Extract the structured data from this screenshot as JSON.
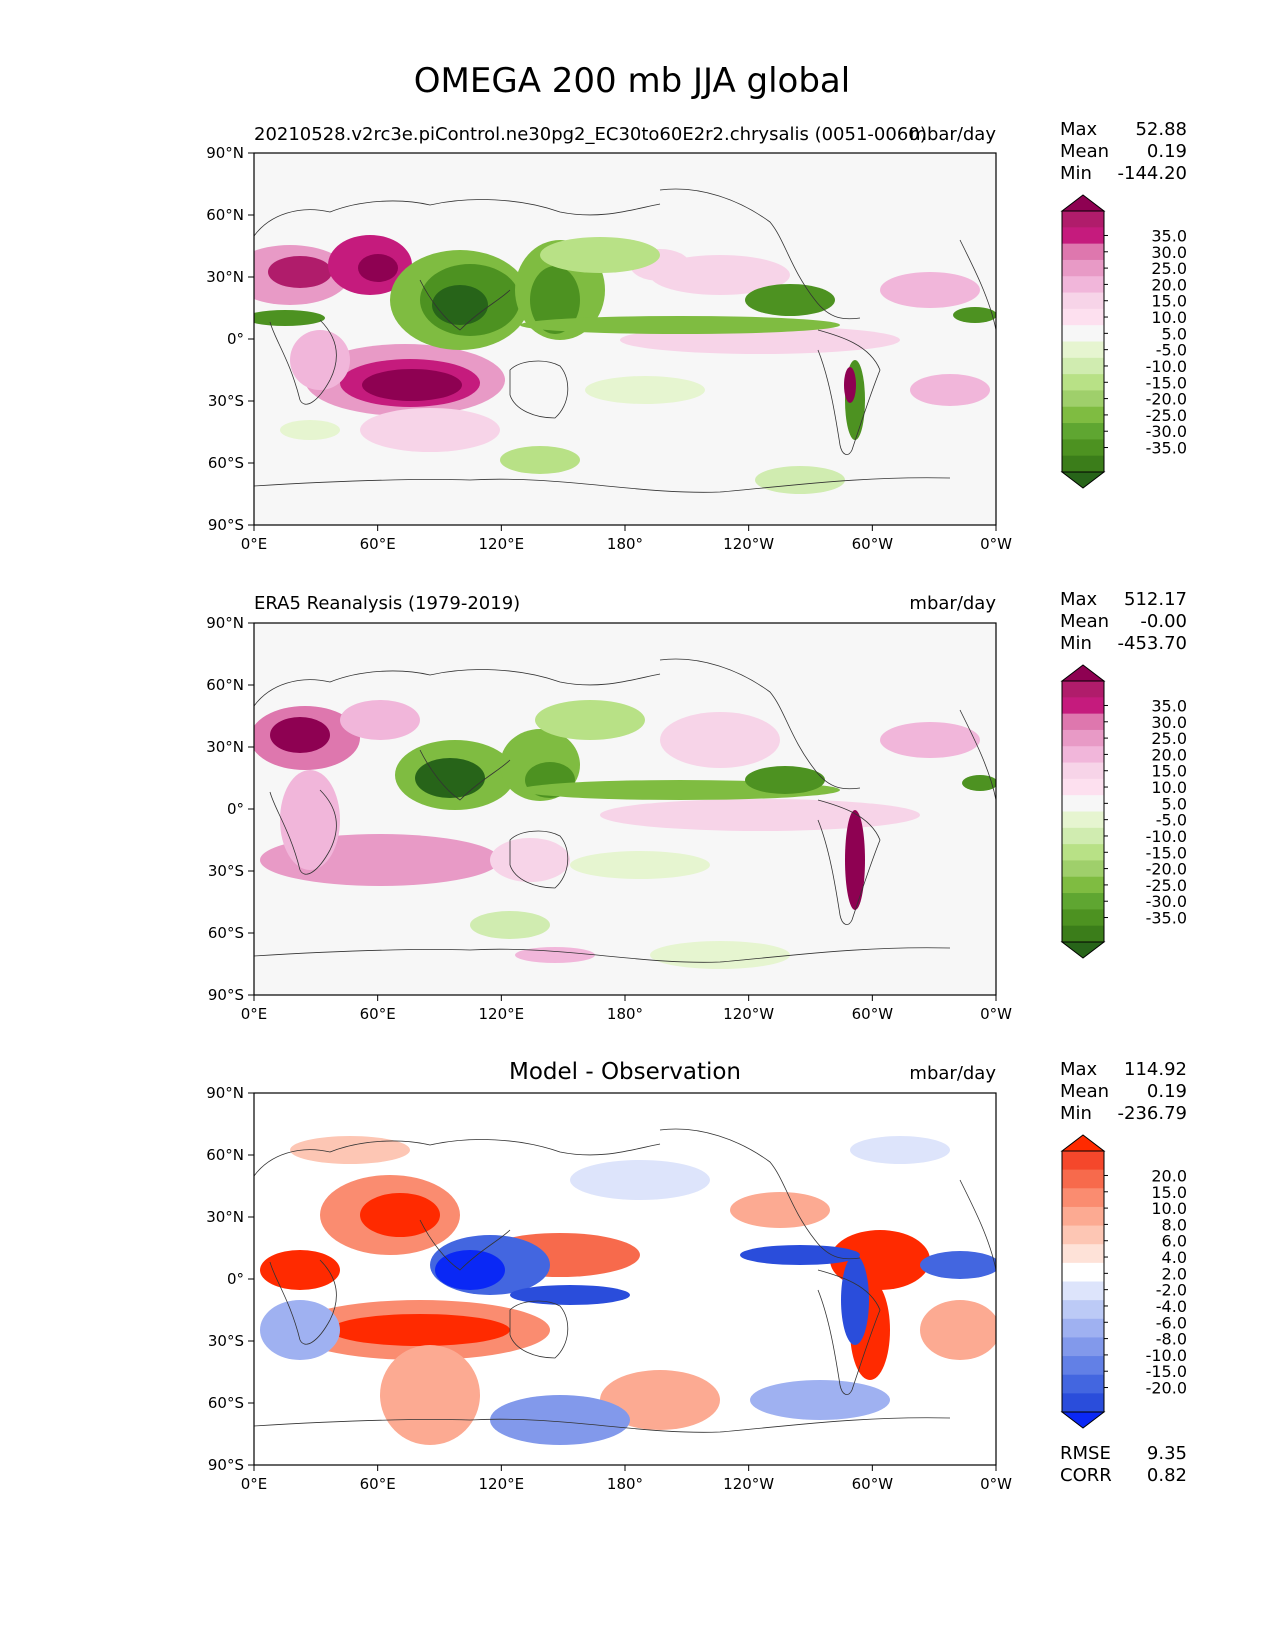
{
  "figure_title": "OMEGA 200 mb JJA global",
  "x_ticks": [
    "0°E",
    "60°E",
    "120°E",
    "180°",
    "120°W",
    "60°W",
    "0°W"
  ],
  "y_ticks": [
    "90°N",
    "60°N",
    "30°N",
    "0°",
    "30°S",
    "60°S",
    "90°S"
  ],
  "panels": [
    {
      "title_left": "20210528.v2rc3e.piControl.ne30pg2_EC30to60E2r2.chrysalis (0051-0060)",
      "title_center": "",
      "units": "mbar/day",
      "stats": {
        "max_label": "Max",
        "max": "52.88",
        "mean_label": "Mean",
        "mean": "0.19",
        "min_label": "Min",
        "min": "-144.20"
      },
      "colorbar": {
        "ticks": [
          "35.0",
          "30.0",
          "25.0",
          "20.0",
          "15.0",
          "10.0",
          "5.0",
          "-5.0",
          "-10.0",
          "-15.0",
          "-20.0",
          "-25.0",
          "-30.0",
          "-35.0"
        ],
        "colors": [
          "#8e0152",
          "#b01c6b",
          "#c51b7d",
          "#de77ae",
          "#e89ac6",
          "#f1b6da",
          "#f7d4e8",
          "#fde0ef",
          "#f7f7f7",
          "#e6f5d0",
          "#d0ecb0",
          "#b8e186",
          "#9fcf6b",
          "#7fbc41",
          "#5fa631",
          "#4d9221",
          "#3b7d1a",
          "#276419"
        ]
      }
    },
    {
      "title_left": "ERA5 Reanalysis (1979-2019)",
      "title_center": "",
      "units": "mbar/day",
      "stats": {
        "max_label": "Max",
        "max": "512.17",
        "mean_label": "Mean",
        "mean": "-0.00",
        "min_label": "Min",
        "min": "-453.70"
      },
      "colorbar": {
        "ticks": [
          "35.0",
          "30.0",
          "25.0",
          "20.0",
          "15.0",
          "10.0",
          "5.0",
          "-5.0",
          "-10.0",
          "-15.0",
          "-20.0",
          "-25.0",
          "-30.0",
          "-35.0"
        ],
        "colors": [
          "#8e0152",
          "#b01c6b",
          "#c51b7d",
          "#de77ae",
          "#e89ac6",
          "#f1b6da",
          "#f7d4e8",
          "#fde0ef",
          "#f7f7f7",
          "#e6f5d0",
          "#d0ecb0",
          "#b8e186",
          "#9fcf6b",
          "#7fbc41",
          "#5fa631",
          "#4d9221",
          "#3b7d1a",
          "#276419"
        ]
      }
    },
    {
      "title_left": "",
      "title_center": "Model - Observation",
      "units": "mbar/day",
      "stats": {
        "max_label": "Max",
        "max": "114.92",
        "mean_label": "Mean",
        "mean": "0.19",
        "min_label": "Min",
        "min": "-236.79"
      },
      "colorbar": {
        "ticks": [
          "20.0",
          "15.0",
          "10.0",
          "8.0",
          "6.0",
          "4.0",
          "2.0",
          "-2.0",
          "-4.0",
          "-6.0",
          "-8.0",
          "-10.0",
          "-15.0",
          "-20.0"
        ],
        "colors": [
          "#ff2a00",
          "#f5472b",
          "#f76a4c",
          "#fa8c70",
          "#fcaa92",
          "#fdc6b4",
          "#fee2d8",
          "#ffffff",
          "#dde4fb",
          "#bccaf6",
          "#9fb1f1",
          "#8299eb",
          "#6280e6",
          "#4366e0",
          "#2a4ddb",
          "#0a28f5"
        ]
      },
      "metrics": {
        "rmse_label": "RMSE",
        "rmse": "9.35",
        "corr_label": "CORR",
        "corr": "0.82"
      }
    }
  ]
}
